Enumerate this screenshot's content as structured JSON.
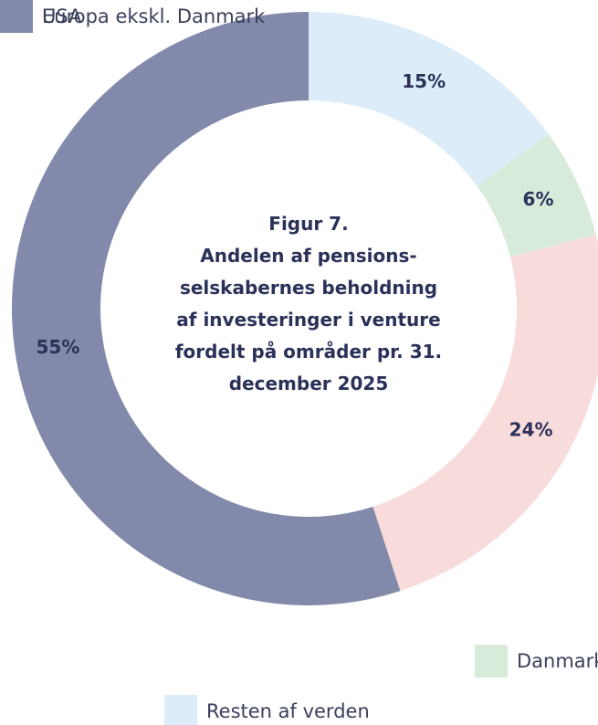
{
  "chart_data": {
    "type": "donut",
    "title": "Figur 7.\nAndelen af pensions-\nselskabernes beholdning\naf investeringer i venture\nfordelt på områder pr. 31.\ndecember 2025",
    "categories": [
      "Resten af verden",
      "Danmark",
      "Europa ekskl. Danmark",
      "USA"
    ],
    "values": [
      15,
      6,
      24,
      55
    ],
    "value_labels": [
      "15%",
      "6%",
      "24%",
      "55%"
    ],
    "colors": [
      "#dcedf9",
      "#d8ead9",
      "#f8dcdc",
      "#8389aa"
    ]
  }
}
